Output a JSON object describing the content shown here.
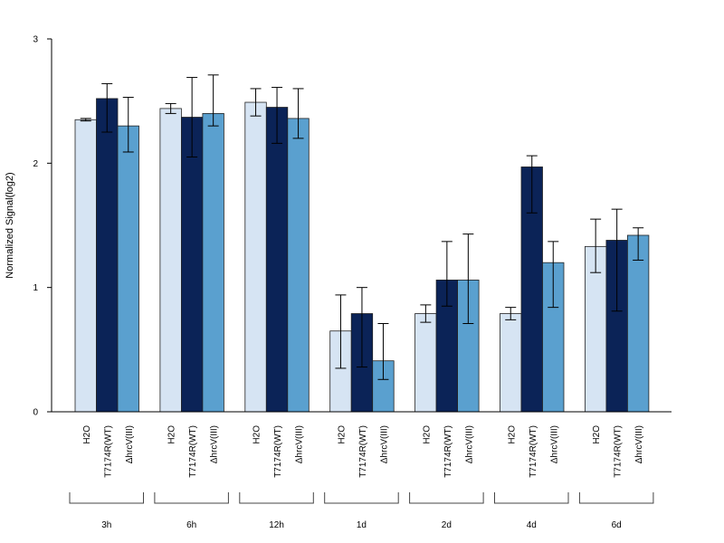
{
  "chart_data": {
    "type": "bar",
    "ylabel": "Normalized Signal(log2)",
    "xlabel": "",
    "ylim": [
      0,
      3
    ],
    "yticks": [
      "0",
      "1",
      "2",
      "3"
    ],
    "groups": [
      "3h",
      "6h",
      "12h",
      "1d",
      "2d",
      "4d",
      "6d"
    ],
    "series": [
      {
        "name": "H2O",
        "color": "#d6e4f3",
        "values": [
          2.35,
          2.44,
          2.49,
          0.65,
          0.79,
          0.79,
          1.33
        ],
        "err_low": [
          2.34,
          2.4,
          2.38,
          0.35,
          0.72,
          0.74,
          1.12
        ],
        "err_high": [
          2.36,
          2.48,
          2.6,
          0.94,
          0.86,
          0.84,
          1.55
        ]
      },
      {
        "name": "T7174R(WT)",
        "color": "#0b2357",
        "values": [
          2.52,
          2.37,
          2.45,
          0.79,
          1.06,
          1.97,
          1.38
        ],
        "err_low": [
          2.25,
          2.05,
          2.16,
          0.36,
          0.85,
          1.6,
          0.81
        ],
        "err_high": [
          2.64,
          2.69,
          2.61,
          1.0,
          1.37,
          2.06,
          1.63
        ]
      },
      {
        "name": "ΔhrcV(III)",
        "color": "#5aa0cf",
        "values": [
          2.3,
          2.4,
          2.36,
          0.41,
          1.06,
          1.2,
          1.42
        ],
        "err_low": [
          2.09,
          2.3,
          2.2,
          0.26,
          0.71,
          0.84,
          1.22
        ],
        "err_high": [
          2.53,
          2.71,
          2.6,
          0.71,
          1.43,
          1.37,
          1.48
        ]
      }
    ]
  }
}
